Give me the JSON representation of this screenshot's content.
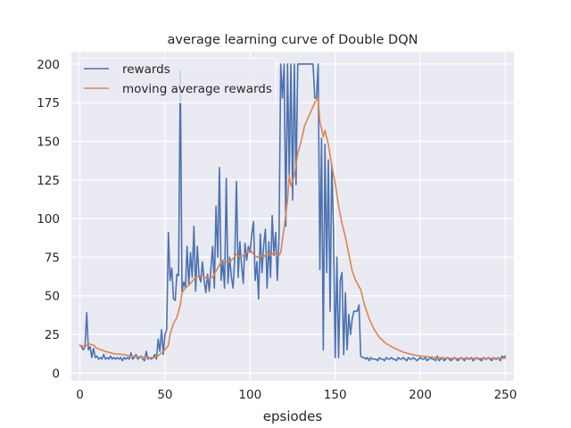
{
  "chart_data": {
    "type": "line",
    "title": "average learning curve of Double DQN",
    "xlabel": "epsiodes",
    "ylabel": "",
    "xlim": [
      -5,
      255
    ],
    "ylim": [
      -5,
      208
    ],
    "xticks": [
      0,
      50,
      100,
      150,
      200,
      250
    ],
    "yticks": [
      0,
      25,
      50,
      75,
      100,
      125,
      150,
      175,
      200
    ],
    "grid": true,
    "legend": "top-left",
    "series": [
      {
        "name": "rewards",
        "color": "#4c72b0",
        "points": [
          [
            0,
            18
          ],
          [
            1,
            17
          ],
          [
            2,
            15
          ],
          [
            3,
            17
          ],
          [
            4,
            39
          ],
          [
            5,
            15
          ],
          [
            6,
            17
          ],
          [
            7,
            10
          ],
          [
            8,
            16
          ],
          [
            9,
            10
          ],
          [
            10,
            11
          ],
          [
            11,
            9
          ],
          [
            12,
            10
          ],
          [
            13,
            9
          ],
          [
            14,
            12
          ],
          [
            15,
            9
          ],
          [
            16,
            10
          ],
          [
            17,
            9
          ],
          [
            18,
            11
          ],
          [
            19,
            9
          ],
          [
            20,
            10
          ],
          [
            21,
            9
          ],
          [
            22,
            10
          ],
          [
            23,
            9
          ],
          [
            24,
            10
          ],
          [
            25,
            8
          ],
          [
            26,
            10
          ],
          [
            27,
            9
          ],
          [
            28,
            10
          ],
          [
            29,
            9
          ],
          [
            30,
            13
          ],
          [
            31,
            9
          ],
          [
            32,
            10
          ],
          [
            33,
            12
          ],
          [
            34,
            9
          ],
          [
            35,
            10
          ],
          [
            36,
            11
          ],
          [
            37,
            9
          ],
          [
            38,
            8
          ],
          [
            39,
            14
          ],
          [
            40,
            9
          ],
          [
            41,
            10
          ],
          [
            42,
            9
          ],
          [
            43,
            10
          ],
          [
            44,
            12
          ],
          [
            45,
            9
          ],
          [
            46,
            22
          ],
          [
            47,
            14
          ],
          [
            48,
            28
          ],
          [
            49,
            12
          ],
          [
            50,
            25
          ],
          [
            51,
            28
          ],
          [
            52,
            91
          ],
          [
            53,
            60
          ],
          [
            54,
            68
          ],
          [
            55,
            48
          ],
          [
            56,
            47
          ],
          [
            57,
            64
          ],
          [
            58,
            63
          ],
          [
            59,
            196
          ],
          [
            60,
            53
          ],
          [
            61,
            59
          ],
          [
            62,
            55
          ],
          [
            63,
            82
          ],
          [
            64,
            57
          ],
          [
            65,
            78
          ],
          [
            66,
            62
          ],
          [
            67,
            95
          ],
          [
            68,
            53
          ],
          [
            69,
            82
          ],
          [
            70,
            63
          ],
          [
            71,
            59
          ],
          [
            72,
            72
          ],
          [
            73,
            60
          ],
          [
            74,
            52
          ],
          [
            75,
            64
          ],
          [
            76,
            53
          ],
          [
            77,
            68
          ],
          [
            78,
            82
          ],
          [
            79,
            55
          ],
          [
            80,
            108
          ],
          [
            81,
            75
          ],
          [
            82,
            133
          ],
          [
            83,
            60
          ],
          [
            84,
            72
          ],
          [
            85,
            55
          ],
          [
            86,
            126
          ],
          [
            87,
            58
          ],
          [
            88,
            75
          ],
          [
            89,
            62
          ],
          [
            90,
            55
          ],
          [
            91,
            75
          ],
          [
            92,
            124
          ],
          [
            93,
            62
          ],
          [
            94,
            85
          ],
          [
            95,
            70
          ],
          [
            96,
            58
          ],
          [
            97,
            84
          ],
          [
            98,
            73
          ],
          [
            99,
            82
          ],
          [
            100,
            78
          ],
          [
            101,
            90
          ],
          [
            102,
            98
          ],
          [
            103,
            60
          ],
          [
            104,
            72
          ],
          [
            105,
            48
          ],
          [
            106,
            90
          ],
          [
            107,
            65
          ],
          [
            108,
            83
          ],
          [
            109,
            93
          ],
          [
            110,
            55
          ],
          [
            111,
            85
          ],
          [
            112,
            62
          ],
          [
            113,
            102
          ],
          [
            114,
            76
          ],
          [
            115,
            91
          ],
          [
            116,
            60
          ],
          [
            117,
            88
          ],
          [
            118,
            200
          ],
          [
            119,
            178
          ],
          [
            120,
            200
          ],
          [
            121,
            95
          ],
          [
            122,
            200
          ],
          [
            123,
            128
          ],
          [
            124,
            200
          ],
          [
            125,
            112
          ],
          [
            126,
            200
          ],
          [
            127,
            122
          ],
          [
            128,
            200
          ],
          [
            129,
            200
          ],
          [
            130,
            200
          ],
          [
            131,
            200
          ],
          [
            132,
            200
          ],
          [
            133,
            200
          ],
          [
            134,
            200
          ],
          [
            135,
            200
          ],
          [
            136,
            200
          ],
          [
            137,
            200
          ],
          [
            138,
            178
          ],
          [
            139,
            178
          ],
          [
            140,
            200
          ],
          [
            141,
            67
          ],
          [
            142,
            152
          ],
          [
            143,
            15
          ],
          [
            144,
            148
          ],
          [
            145,
            65
          ],
          [
            146,
            138
          ],
          [
            147,
            40
          ],
          [
            148,
            135
          ],
          [
            149,
            93
          ],
          [
            150,
            10
          ],
          [
            151,
            75
          ],
          [
            152,
            10
          ],
          [
            153,
            60
          ],
          [
            154,
            65
          ],
          [
            155,
            12
          ],
          [
            156,
            52
          ],
          [
            157,
            15
          ],
          [
            158,
            38
          ],
          [
            159,
            25
          ],
          [
            160,
            35
          ],
          [
            161,
            40
          ],
          [
            162,
            40
          ],
          [
            163,
            40
          ],
          [
            164,
            44
          ],
          [
            165,
            11
          ],
          [
            166,
            10
          ],
          [
            167,
            10
          ],
          [
            168,
            9
          ],
          [
            169,
            10
          ],
          [
            170,
            8
          ],
          [
            171,
            10
          ],
          [
            172,
            9
          ],
          [
            173,
            9
          ],
          [
            174,
            9
          ],
          [
            175,
            8
          ],
          [
            176,
            10
          ],
          [
            177,
            9
          ],
          [
            178,
            9
          ],
          [
            179,
            8
          ],
          [
            180,
            10
          ],
          [
            181,
            9
          ],
          [
            182,
            9
          ],
          [
            183,
            10
          ],
          [
            184,
            9
          ],
          [
            185,
            9
          ],
          [
            186,
            8
          ],
          [
            187,
            10
          ],
          [
            188,
            9
          ],
          [
            189,
            9
          ],
          [
            190,
            10
          ],
          [
            191,
            9
          ],
          [
            192,
            8
          ],
          [
            193,
            10
          ],
          [
            194,
            9
          ],
          [
            195,
            9
          ],
          [
            196,
            10
          ],
          [
            197,
            9
          ],
          [
            198,
            8
          ],
          [
            199,
            9
          ],
          [
            200,
            10
          ],
          [
            201,
            9
          ],
          [
            202,
            9
          ],
          [
            203,
            10
          ],
          [
            204,
            8
          ],
          [
            205,
            9
          ],
          [
            206,
            10
          ],
          [
            207,
            9
          ],
          [
            208,
            9
          ],
          [
            209,
            8
          ],
          [
            210,
            11
          ],
          [
            211,
            8
          ],
          [
            212,
            9
          ],
          [
            213,
            10
          ],
          [
            214,
            8
          ],
          [
            215,
            9
          ],
          [
            216,
            10
          ],
          [
            217,
            9
          ],
          [
            218,
            8
          ],
          [
            219,
            9
          ],
          [
            220,
            10
          ],
          [
            221,
            9
          ],
          [
            222,
            8
          ],
          [
            223,
            9
          ],
          [
            224,
            10
          ],
          [
            225,
            9
          ],
          [
            226,
            8
          ],
          [
            227,
            10
          ],
          [
            228,
            9
          ],
          [
            229,
            9
          ],
          [
            230,
            10
          ],
          [
            231,
            8
          ],
          [
            232,
            9
          ],
          [
            233,
            10
          ],
          [
            234,
            9
          ],
          [
            235,
            9
          ],
          [
            236,
            8
          ],
          [
            237,
            10
          ],
          [
            238,
            9
          ],
          [
            239,
            9
          ],
          [
            240,
            10
          ],
          [
            241,
            9
          ],
          [
            242,
            8
          ],
          [
            243,
            10
          ],
          [
            244,
            9
          ],
          [
            245,
            9
          ],
          [
            246,
            10
          ],
          [
            247,
            8
          ],
          [
            248,
            11
          ],
          [
            249,
            10
          ],
          [
            250,
            11
          ]
        ]
      },
      {
        "name": "moving average rewards",
        "color": "#dd8452",
        "points": [
          [
            0,
            18
          ],
          [
            3,
            17
          ],
          [
            5,
            19
          ],
          [
            8,
            18
          ],
          [
            10,
            16
          ],
          [
            15,
            14
          ],
          [
            20,
            12.5
          ],
          [
            25,
            12
          ],
          [
            30,
            11
          ],
          [
            35,
            10.5
          ],
          [
            40,
            10
          ],
          [
            44,
            10
          ],
          [
            47,
            12
          ],
          [
            50,
            15
          ],
          [
            52,
            18
          ],
          [
            53,
            25
          ],
          [
            55,
            32
          ],
          [
            57,
            36
          ],
          [
            59,
            44
          ],
          [
            60,
            52
          ],
          [
            62,
            55
          ],
          [
            65,
            58
          ],
          [
            68,
            62
          ],
          [
            70,
            63
          ],
          [
            72,
            63
          ],
          [
            75,
            61
          ],
          [
            78,
            62
          ],
          [
            80,
            66
          ],
          [
            82,
            70
          ],
          [
            84,
            73
          ],
          [
            86,
            72
          ],
          [
            88,
            72
          ],
          [
            90,
            74
          ],
          [
            92,
            77
          ],
          [
            94,
            75
          ],
          [
            96,
            76
          ],
          [
            98,
            78
          ],
          [
            100,
            80
          ],
          [
            102,
            77
          ],
          [
            104,
            75
          ],
          [
            106,
            76
          ],
          [
            108,
            75
          ],
          [
            110,
            78
          ],
          [
            112,
            76
          ],
          [
            114,
            78
          ],
          [
            116,
            76
          ],
          [
            117,
            76
          ],
          [
            118,
            78
          ],
          [
            120,
            94
          ],
          [
            122,
            112
          ],
          [
            123,
            128
          ],
          [
            124,
            121
          ],
          [
            126,
            128
          ],
          [
            128,
            142
          ],
          [
            130,
            150
          ],
          [
            132,
            160
          ],
          [
            134,
            165
          ],
          [
            136,
            170
          ],
          [
            138,
            175
          ],
          [
            140,
            178
          ],
          [
            141,
            163
          ],
          [
            143,
            153
          ],
          [
            144,
            157
          ],
          [
            146,
            148
          ],
          [
            148,
            134
          ],
          [
            150,
            123
          ],
          [
            152,
            108
          ],
          [
            154,
            97
          ],
          [
            156,
            88
          ],
          [
            158,
            77
          ],
          [
            160,
            66
          ],
          [
            162,
            60
          ],
          [
            164,
            56
          ],
          [
            165,
            54
          ],
          [
            167,
            45
          ],
          [
            170,
            35
          ],
          [
            173,
            28
          ],
          [
            176,
            23
          ],
          [
            180,
            19
          ],
          [
            185,
            16
          ],
          [
            190,
            13.5
          ],
          [
            195,
            12
          ],
          [
            200,
            11
          ],
          [
            210,
            10
          ],
          [
            220,
            9.5
          ],
          [
            230,
            9.5
          ],
          [
            240,
            9.5
          ],
          [
            250,
            9.5
          ]
        ]
      }
    ]
  }
}
